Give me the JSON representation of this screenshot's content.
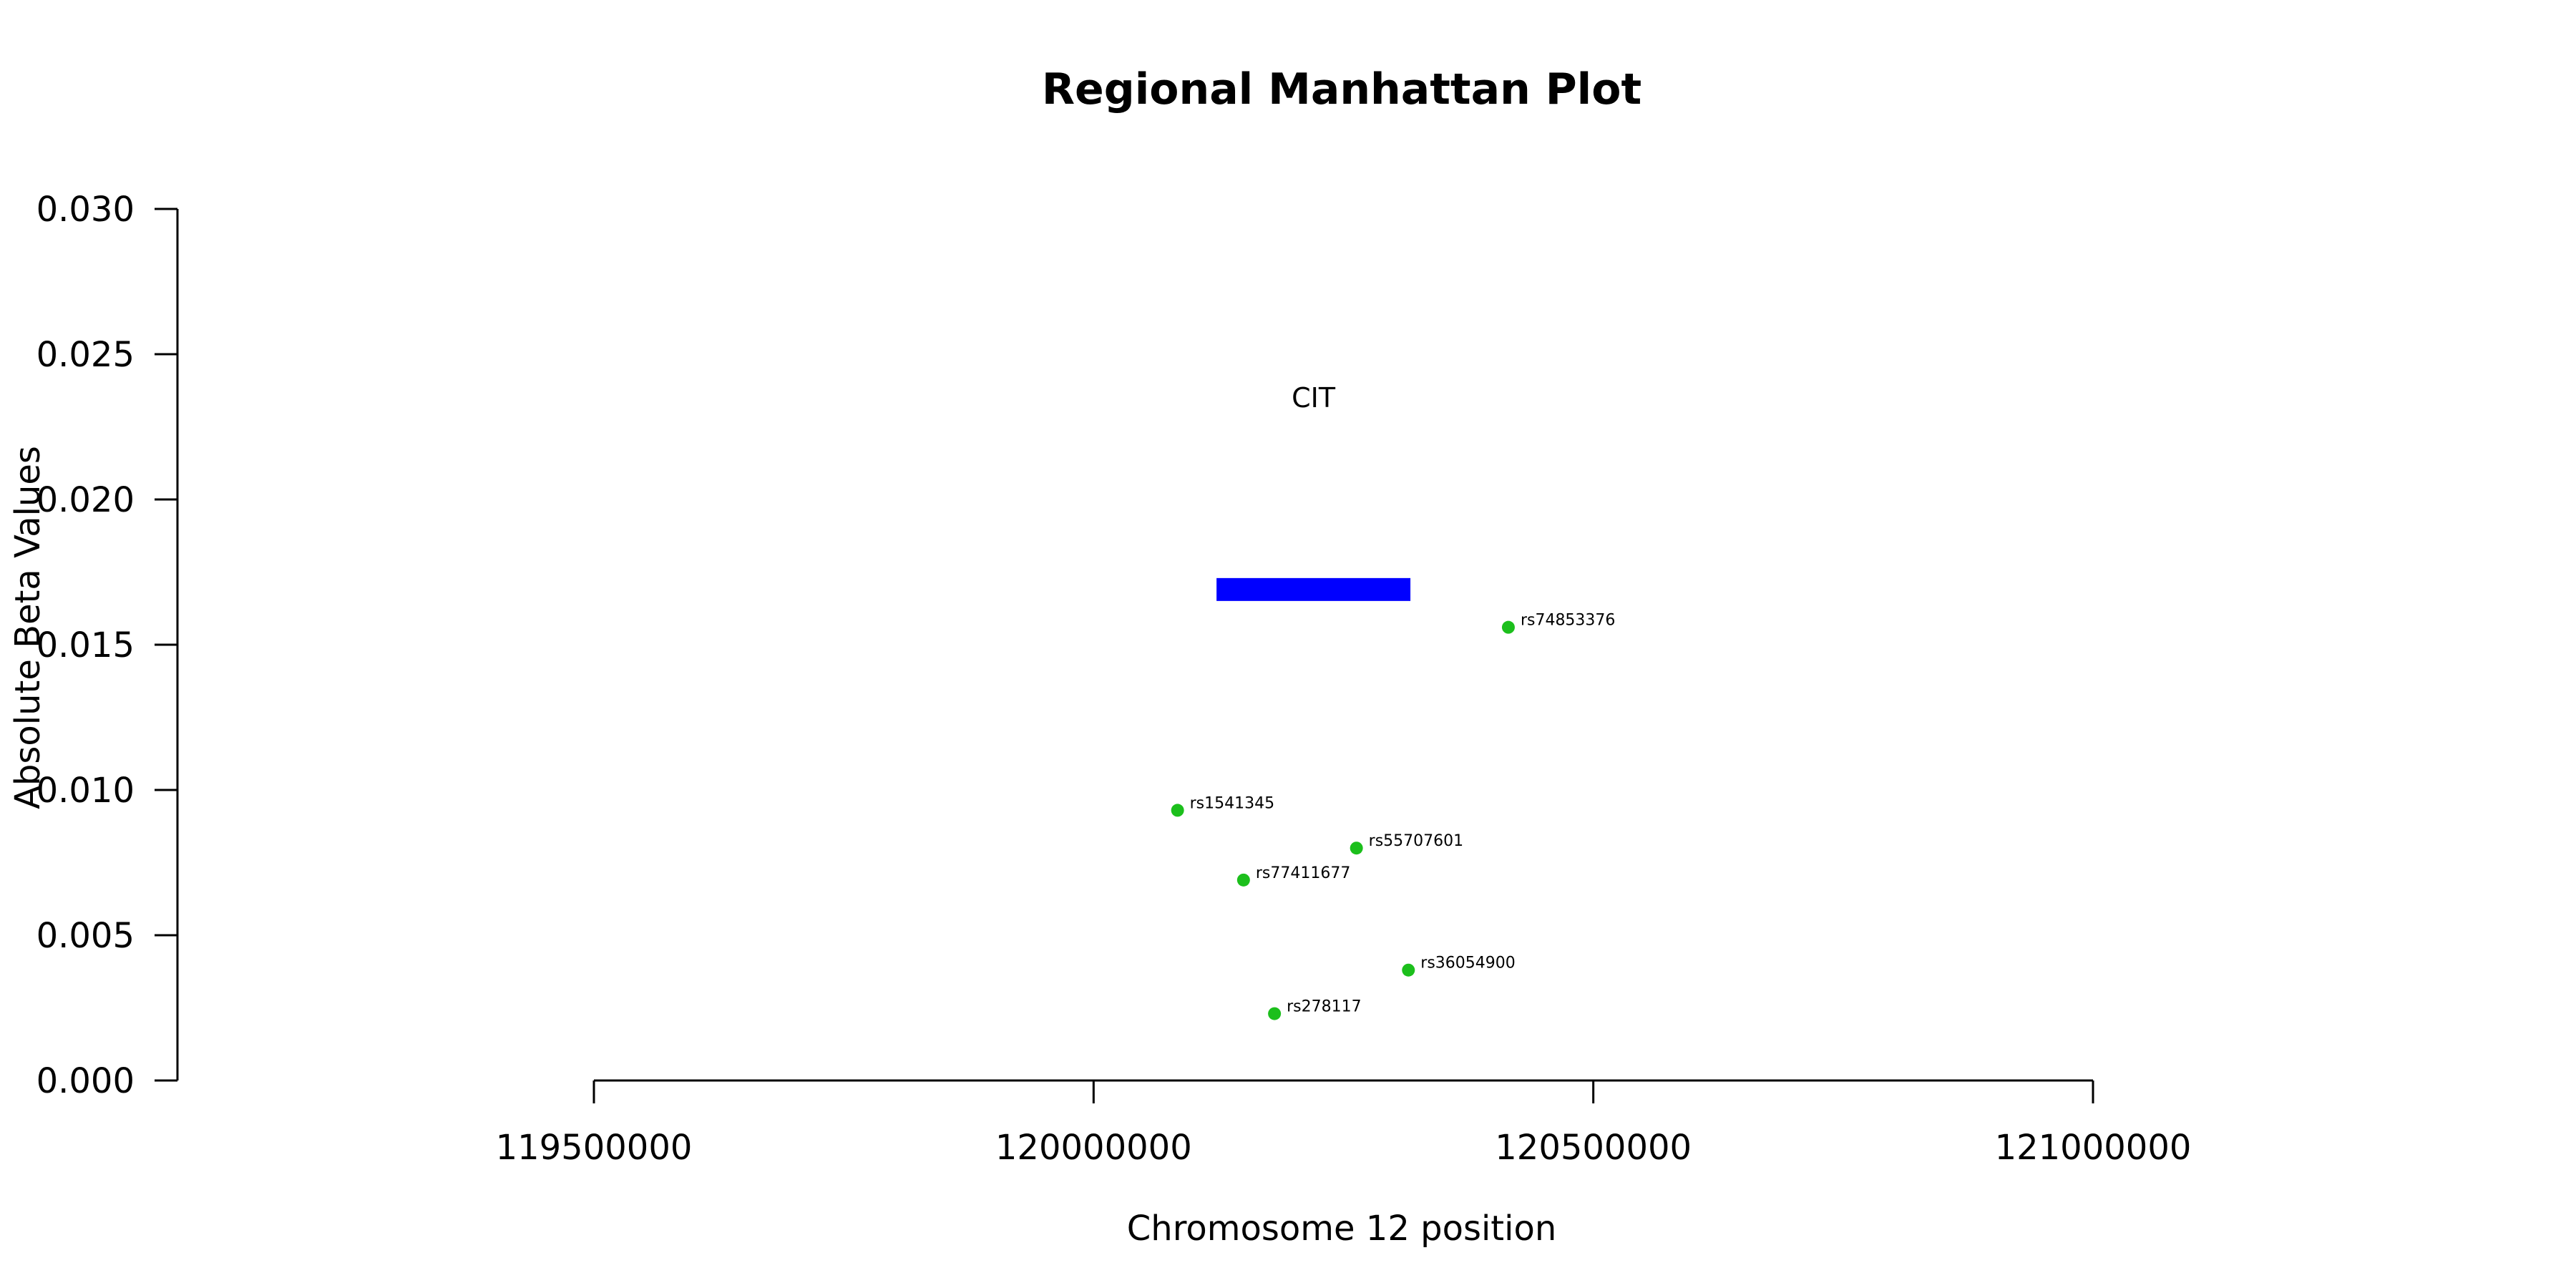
{
  "chart_data": {
    "type": "scatter",
    "title": "Regional Manhattan Plot",
    "xlabel": "Chromosome 12 position",
    "ylabel": "Absolute Beta Values",
    "xlim": [
      119500000,
      121000000
    ],
    "ylim": [
      0,
      0.03
    ],
    "x_ticks": [
      119500000,
      120000000,
      120500000,
      121000000
    ],
    "x_tick_labels": [
      "119500000",
      "120000000",
      "120500000",
      "121000000"
    ],
    "y_ticks": [
      0,
      0.005,
      0.01,
      0.015,
      0.02,
      0.025,
      0.03
    ],
    "y_tick_labels": [
      "0.000",
      "0.005",
      "0.010",
      "0.015",
      "0.020",
      "0.025",
      "0.030"
    ],
    "point_color": "#1cbf1c",
    "gene_color": "#0000ff",
    "points": [
      {
        "label": "rs74853376",
        "x": 120415000,
        "y": 0.0156
      },
      {
        "label": "rs1541345",
        "x": 120084000,
        "y": 0.0093
      },
      {
        "label": "rs55707601",
        "x": 120263000,
        "y": 0.008
      },
      {
        "label": "rs77411677",
        "x": 120150000,
        "y": 0.0069
      },
      {
        "label": "rs36054900",
        "x": 120315000,
        "y": 0.0038
      },
      {
        "label": "rs278117",
        "x": 120181000,
        "y": 0.0023
      }
    ],
    "genes": [
      {
        "name": "CIT",
        "start": 120123000,
        "end": 120317000,
        "y": 0.0169
      }
    ]
  }
}
